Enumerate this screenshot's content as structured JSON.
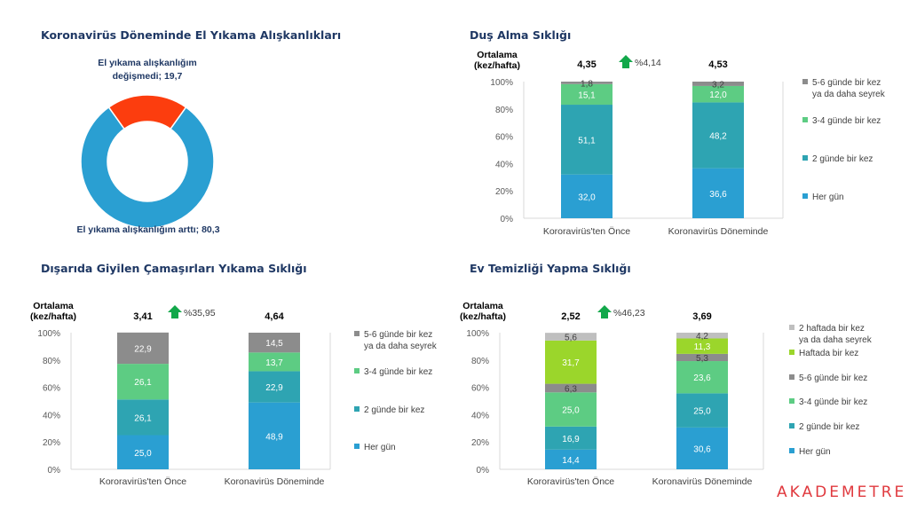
{
  "brand": "AKADEMETRE",
  "chart_data": [
    {
      "id": "hand",
      "type": "pie",
      "title": "Koronavirüs Döneminde El Yıkama Alışkanlıkları",
      "slices": [
        {
          "label": "El yıkama alışkanlığım değişmedi; 19,7",
          "label_lines": [
            "El yıkama alışkanlığım",
            "değişmedi; 19,7"
          ],
          "value": 19.7,
          "color": "#fc3d0e"
        },
        {
          "label": "El yıkama alışkanlığım arttı; 80,3",
          "label_lines": [
            "El yıkama alışkanlığım arttı; 80,3"
          ],
          "value": 80.3,
          "color": "#2a9fd2"
        }
      ]
    },
    {
      "id": "dus",
      "type": "bar",
      "stacked": true,
      "title": "Duş Alma Sıklığı",
      "avg_header": [
        "Ortalama",
        "(kez/hafta)"
      ],
      "categories": [
        "Kororavirüs'ten Önce",
        "Koronavirüs Döneminde"
      ],
      "averages": [
        "4,35",
        "4,53"
      ],
      "change": "%4,14",
      "yticks": [
        "0%",
        "20%",
        "40%",
        "60%",
        "80%",
        "100%"
      ],
      "ylim": [
        0,
        100
      ],
      "series": [
        {
          "name": "Her gün",
          "values": [
            32.0,
            36.6
          ],
          "labels": [
            "32,0",
            "36,6"
          ],
          "color": "#2a9fd2"
        },
        {
          "name": "2 günde bir kez",
          "values": [
            51.1,
            48.2
          ],
          "labels": [
            "51,1",
            "48,2"
          ],
          "color": "#2ea4b2"
        },
        {
          "name": "3-4 günde bir kez",
          "values": [
            15.1,
            12.0
          ],
          "labels": [
            "15,1",
            "12,0"
          ],
          "color": "#5dcc83"
        },
        {
          "name": "5-6 günde bir kez ya da daha seyrek",
          "name_lines": [
            "5-6 günde bir kez",
            "ya da daha seyrek"
          ],
          "values": [
            1.8,
            3.2
          ],
          "labels": [
            "1,8",
            "3,2"
          ],
          "color": "#8c8c8c"
        }
      ]
    },
    {
      "id": "camasir",
      "type": "bar",
      "stacked": true,
      "title": "Dışarıda Giyilen Çamaşırları Yıkama Sıklığı",
      "avg_header": [
        "Ortalama",
        "(kez/hafta)"
      ],
      "categories": [
        "Kororavirüs'ten Önce",
        "Koronavirüs Döneminde"
      ],
      "averages": [
        "3,41",
        "4,64"
      ],
      "change": "%35,95",
      "yticks": [
        "0%",
        "20%",
        "40%",
        "60%",
        "80%",
        "100%"
      ],
      "ylim": [
        0,
        100
      ],
      "series": [
        {
          "name": "Her gün",
          "values": [
            25.0,
            48.9
          ],
          "labels": [
            "25,0",
            "48,9"
          ],
          "color": "#2a9fd2"
        },
        {
          "name": "2 günde bir kez",
          "values": [
            26.1,
            22.9
          ],
          "labels": [
            "26,1",
            "22,9"
          ],
          "color": "#2ea4b2"
        },
        {
          "name": "3-4 günde bir kez",
          "values": [
            26.1,
            13.7
          ],
          "labels": [
            "26,1",
            "13,7"
          ],
          "color": "#5dcc83"
        },
        {
          "name": "5-6 günde bir kez ya da daha seyrek",
          "name_lines": [
            "5-6 günde bir kez",
            "ya da daha seyrek"
          ],
          "values": [
            22.9,
            14.5
          ],
          "labels": [
            "22,9",
            "14,5"
          ],
          "color": "#8c8c8c"
        }
      ]
    },
    {
      "id": "ev",
      "type": "bar",
      "stacked": true,
      "title": "Ev Temizliği Yapma Sıklığı",
      "avg_header": [
        "Ortalama",
        "(kez/hafta)"
      ],
      "categories": [
        "Kororavirüs'ten Önce",
        "Koronavirüs Döneminde"
      ],
      "averages": [
        "2,52",
        "3,69"
      ],
      "change": "%46,23",
      "yticks": [
        "0%",
        "20%",
        "40%",
        "60%",
        "80%",
        "100%"
      ],
      "ylim": [
        0,
        100
      ],
      "series": [
        {
          "name": "Her gün",
          "values": [
            14.4,
            30.6
          ],
          "labels": [
            "14,4",
            "30,6"
          ],
          "color": "#2a9fd2"
        },
        {
          "name": "2 günde bir kez",
          "values": [
            16.9,
            25.0
          ],
          "labels": [
            "16,9",
            "25,0"
          ],
          "color": "#2ea4b2"
        },
        {
          "name": "3-4 günde bir kez",
          "values": [
            25.0,
            23.6
          ],
          "labels": [
            "25,0",
            "23,6"
          ],
          "color": "#5dcc83"
        },
        {
          "name": "5-6 günde bir kez",
          "values": [
            6.3,
            5.3
          ],
          "labels": [
            "6,3",
            "5,3"
          ],
          "color": "#8c8c8c"
        },
        {
          "name": "Haftada bir kez",
          "values": [
            31.7,
            11.3
          ],
          "labels": [
            "31,7",
            "11,3"
          ],
          "color": "#9bd62b"
        },
        {
          "name": "2 haftada bir kez ya da daha seyrek",
          "name_lines": [
            "2 haftada bir kez",
            "ya da daha seyrek"
          ],
          "values": [
            5.6,
            4.2
          ],
          "labels": [
            "5,6",
            "4,2"
          ],
          "color": "#bfbfbf"
        }
      ]
    }
  ]
}
